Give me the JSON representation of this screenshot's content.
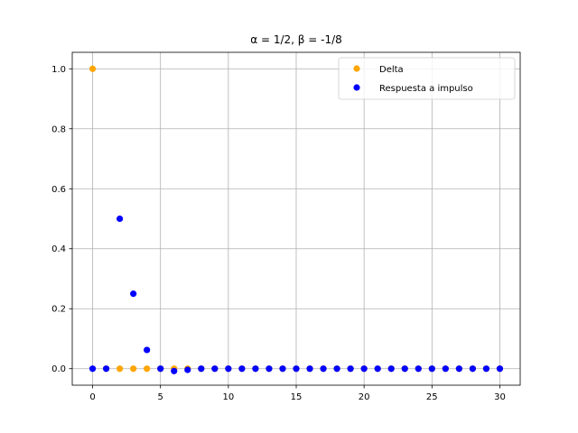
{
  "chart_data": {
    "type": "scatter",
    "title": "α = 1/2, β = -1/8",
    "xlabel": "",
    "ylabel": "",
    "xlim": [
      -1.5,
      31.5
    ],
    "ylim": [
      -0.055,
      1.055
    ],
    "xticks": [
      0,
      5,
      10,
      15,
      20,
      25,
      30
    ],
    "yticks": [
      0.0,
      0.2,
      0.4,
      0.6,
      0.8,
      1.0
    ],
    "xtick_labels": [
      "0",
      "5",
      "10",
      "15",
      "20",
      "25",
      "30"
    ],
    "ytick_labels": [
      "0.0",
      "0.2",
      "0.4",
      "0.6",
      "0.8",
      "1.0"
    ],
    "grid": true,
    "legend_position": "top-right",
    "series": [
      {
        "name": "Delta",
        "color": "#ffa500",
        "x": [
          0,
          1,
          2,
          3,
          4,
          5,
          6,
          7,
          8,
          9,
          10,
          11,
          12,
          13,
          14,
          15,
          16,
          17,
          18,
          19,
          20,
          21,
          22,
          23,
          24,
          25,
          26,
          27,
          28,
          29,
          30
        ],
        "y": [
          1,
          0,
          0,
          0,
          0,
          0,
          0,
          0,
          0,
          0,
          0,
          0,
          0,
          0,
          0,
          0,
          0,
          0,
          0,
          0,
          0,
          0,
          0,
          0,
          0,
          0,
          0,
          0,
          0,
          0,
          0
        ]
      },
      {
        "name": "Respuesta a impulso",
        "color": "#0000ff",
        "x": [
          0,
          1,
          2,
          3,
          4,
          5,
          6,
          7,
          8,
          9,
          10,
          11,
          12,
          13,
          14,
          15,
          16,
          17,
          18,
          19,
          20,
          21,
          22,
          23,
          24,
          25,
          26,
          27,
          28,
          29,
          30
        ],
        "y": [
          0,
          0,
          0.5,
          0.25,
          0.0625,
          0,
          -0.0078,
          -0.0039,
          0,
          0,
          0,
          0,
          0,
          0,
          0,
          0,
          0,
          0,
          0,
          0,
          0,
          0,
          0,
          0,
          0,
          0,
          0,
          0,
          0,
          0,
          0
        ]
      }
    ]
  }
}
